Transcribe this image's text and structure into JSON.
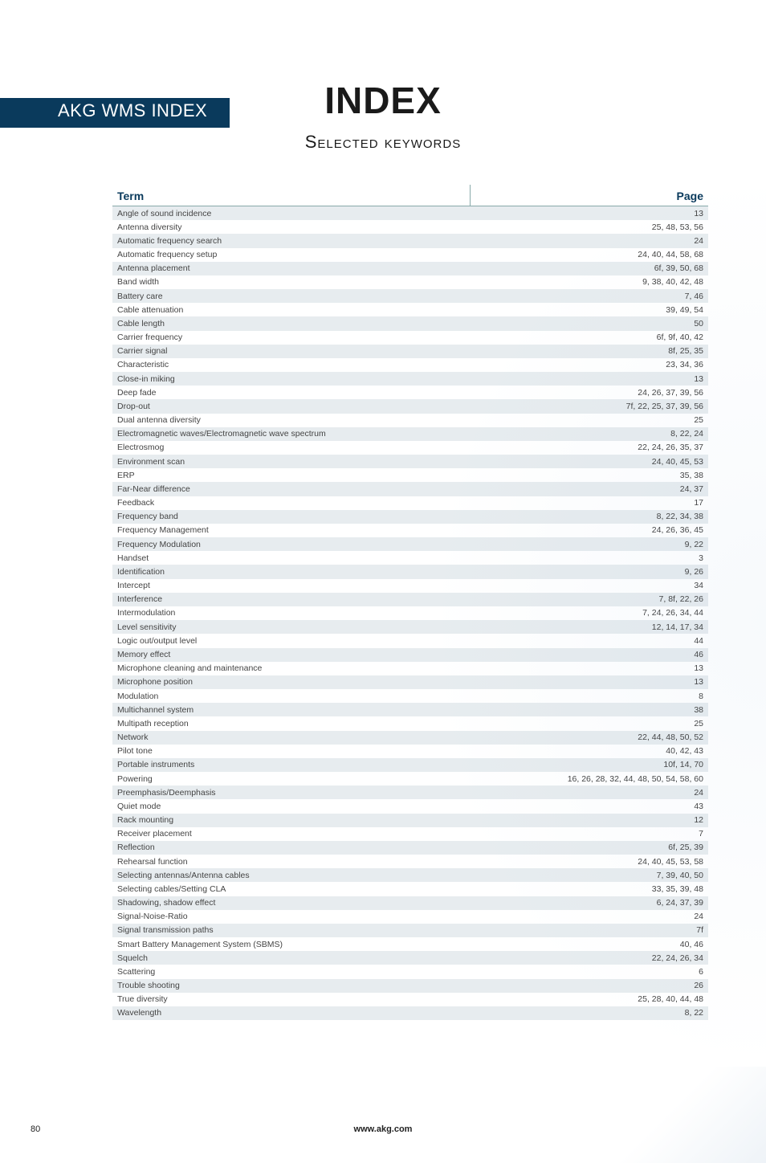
{
  "tab_label": "AKG WMS INDEX",
  "title": "INDEX",
  "subtitle": "Selected keywords",
  "columns": {
    "term": "Term",
    "page": "Page"
  },
  "rows": [
    {
      "term": "Angle of sound incidence",
      "page": "13"
    },
    {
      "term": "Antenna diversity",
      "page": "25, 48, 53, 56"
    },
    {
      "term": "Automatic frequency search",
      "page": "24"
    },
    {
      "term": "Automatic frequency setup",
      "page": "24, 40, 44, 58, 68"
    },
    {
      "term": "Antenna placement",
      "page": "6f, 39, 50, 68"
    },
    {
      "term": "Band width",
      "page": "9, 38, 40, 42, 48"
    },
    {
      "term": "Battery care",
      "page": "7, 46"
    },
    {
      "term": "Cable attenuation",
      "page": "39, 49, 54"
    },
    {
      "term": "Cable length",
      "page": "50"
    },
    {
      "term": "Carrier frequency",
      "page": "6f, 9f, 40, 42"
    },
    {
      "term": "Carrier signal",
      "page": "8f, 25, 35"
    },
    {
      "term": "Characteristic",
      "page": "23, 34, 36"
    },
    {
      "term": "Close-in miking",
      "page": "13"
    },
    {
      "term": "Deep fade",
      "page": "24, 26, 37, 39, 56"
    },
    {
      "term": "Drop-out",
      "page": "7f, 22, 25, 37, 39, 56"
    },
    {
      "term": "Dual antenna diversity",
      "page": "25"
    },
    {
      "term": "Electromagnetic waves/Electromagnetic wave spectrum",
      "page": "8, 22, 24"
    },
    {
      "term": "Electrosmog",
      "page": "22, 24, 26, 35, 37"
    },
    {
      "term": "Environment scan",
      "page": "24, 40, 45, 53"
    },
    {
      "term": "ERP",
      "page": "35, 38"
    },
    {
      "term": "Far-Near difference",
      "page": "24, 37"
    },
    {
      "term": "Feedback",
      "page": "17"
    },
    {
      "term": "Frequency band",
      "page": "8, 22, 34, 38"
    },
    {
      "term": "Frequency Management",
      "page": "24, 26, 36, 45"
    },
    {
      "term": "Frequency Modulation",
      "page": "9, 22"
    },
    {
      "term": "Handset",
      "page": "3"
    },
    {
      "term": "Identification",
      "page": "9, 26"
    },
    {
      "term": "Intercept",
      "page": "34"
    },
    {
      "term": "Interference",
      "page": "7, 8f, 22, 26"
    },
    {
      "term": "Intermodulation",
      "page": "7, 24, 26, 34, 44"
    },
    {
      "term": "Level sensitivity",
      "page": "12, 14, 17, 34"
    },
    {
      "term": "Logic out/output level",
      "page": "44"
    },
    {
      "term": "Memory effect",
      "page": "46"
    },
    {
      "term": "Microphone cleaning and maintenance",
      "page": "13"
    },
    {
      "term": "Microphone position",
      "page": "13"
    },
    {
      "term": "Modulation",
      "page": "8"
    },
    {
      "term": "Multichannel system",
      "page": "38"
    },
    {
      "term": "Multipath reception",
      "page": "25"
    },
    {
      "term": "Network",
      "page": "22, 44, 48, 50, 52"
    },
    {
      "term": "Pilot tone",
      "page": "40, 42, 43"
    },
    {
      "term": "Portable instruments",
      "page": "10f, 14, 70"
    },
    {
      "term": "Powering",
      "page": "16, 26, 28, 32, 44, 48, 50, 54, 58, 60"
    },
    {
      "term": "Preemphasis/Deemphasis",
      "page": "24"
    },
    {
      "term": "Quiet mode",
      "page": "43"
    },
    {
      "term": "Rack mounting",
      "page": "12"
    },
    {
      "term": "Receiver placement",
      "page": "7"
    },
    {
      "term": "Reflection",
      "page": "6f, 25, 39"
    },
    {
      "term": "Rehearsal function",
      "page": "24, 40, 45, 53, 58"
    },
    {
      "term": "Selecting antennas/Antenna cables",
      "page": "7, 39, 40, 50"
    },
    {
      "term": "Selecting cables/Setting CLA",
      "page": "33, 35, 39, 48"
    },
    {
      "term": "Shadowing, shadow effect",
      "page": "6, 24, 37, 39"
    },
    {
      "term": "Signal-Noise-Ratio",
      "page": "24"
    },
    {
      "term": "Signal transmission paths",
      "page": "7f"
    },
    {
      "term": "Smart Battery Management System (SBMS)",
      "page": "40, 46"
    },
    {
      "term": "Squelch",
      "page": "22, 24, 26, 34"
    },
    {
      "term": "Scattering",
      "page": "6"
    },
    {
      "term": "Trouble shooting",
      "page": "26"
    },
    {
      "term": "True diversity",
      "page": "25, 28, 40, 44, 48"
    },
    {
      "term": "Wavelength",
      "page": "8, 22"
    }
  ],
  "footer_url": "www.akg.com",
  "page_number": "80",
  "colors": {
    "tab_bg": "#0a3a5c",
    "tab_fg": "#ffffff",
    "alt_row_bg": "#e7ecef",
    "text": "#444444",
    "header_text": "#0a3a5c"
  }
}
